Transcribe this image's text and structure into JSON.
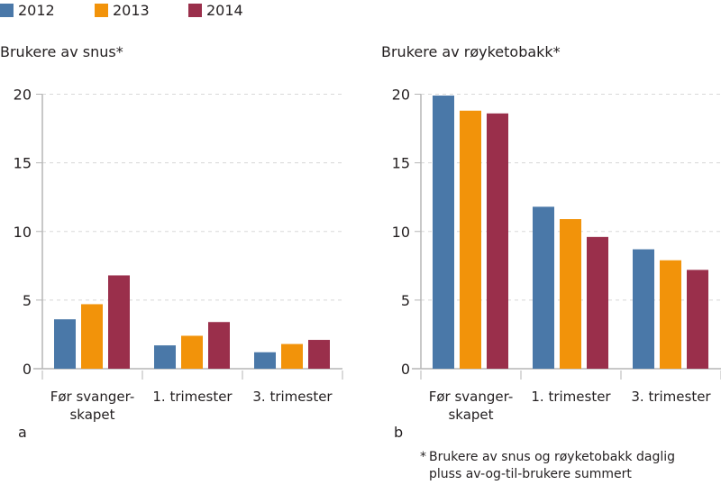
{
  "legend": [
    {
      "label": "2012",
      "color": "#4a78a8"
    },
    {
      "label": "2013",
      "color": "#f2930a"
    },
    {
      "label": "2014",
      "color": "#9a2f4b"
    }
  ],
  "panels": [
    {
      "letter": "a",
      "title": "Brukere av snus*"
    },
    {
      "letter": "b",
      "title": "Brukere av røyketobakk*"
    }
  ],
  "footnote": {
    "star": "*",
    "line1": "Brukere av snus og røyketobakk daglig",
    "line2": "pluss av-og-til-brukere summert"
  },
  "chart_data": [
    {
      "type": "bar",
      "title": "Brukere av snus*",
      "panel": "a",
      "categories": [
        "Før svanger-skapet",
        "1. trimester",
        "3. trimester"
      ],
      "category_lines": [
        [
          "Før svanger-",
          "skapet"
        ],
        [
          "1. trimester"
        ],
        [
          "3. trimester"
        ]
      ],
      "series": [
        {
          "name": "2012",
          "color": "#4a78a8",
          "values": [
            3.6,
            1.7,
            1.2
          ]
        },
        {
          "name": "2013",
          "color": "#f2930a",
          "values": [
            4.7,
            2.4,
            1.8
          ]
        },
        {
          "name": "2014",
          "color": "#9a2f4b",
          "values": [
            6.8,
            3.4,
            2.1
          ]
        }
      ],
      "xlabel": "",
      "ylabel": "",
      "ylim": [
        0,
        20
      ],
      "yticks": [
        0,
        5,
        10,
        15,
        20
      ],
      "grid": true,
      "legend_position": "top"
    },
    {
      "type": "bar",
      "title": "Brukere av røyketobakk*",
      "panel": "b",
      "categories": [
        "Før svanger-skapet",
        "1. trimester",
        "3. trimester"
      ],
      "category_lines": [
        [
          "Før svanger-",
          "skapet"
        ],
        [
          "1. trimester"
        ],
        [
          "3. trimester"
        ]
      ],
      "series": [
        {
          "name": "2012",
          "color": "#4a78a8",
          "values": [
            19.9,
            11.8,
            8.7
          ]
        },
        {
          "name": "2013",
          "color": "#f2930a",
          "values": [
            18.8,
            10.9,
            7.9
          ]
        },
        {
          "name": "2014",
          "color": "#9a2f4b",
          "values": [
            18.6,
            9.6,
            7.2
          ]
        }
      ],
      "xlabel": "",
      "ylabel": "",
      "ylim": [
        0,
        20
      ],
      "yticks": [
        0,
        5,
        10,
        15,
        20
      ],
      "grid": true,
      "legend_position": "top"
    }
  ]
}
